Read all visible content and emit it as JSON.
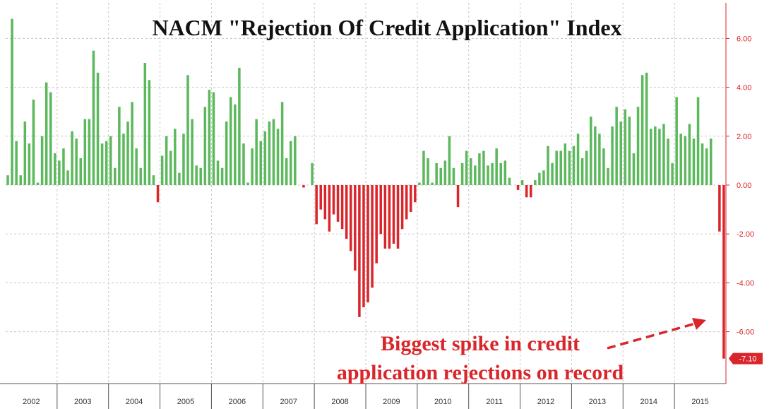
{
  "chart_data": {
    "type": "bar",
    "title": "NACM \"Rejection Of Credit Application\" Index",
    "xlabel": "",
    "ylabel": "",
    "ylim": [
      -7.6,
      7.6
    ],
    "y_ticks": [
      {
        "value": 6,
        "label": "6.00"
      },
      {
        "value": 4,
        "label": "4.00"
      },
      {
        "value": 2,
        "label": "2.00"
      },
      {
        "value": 0,
        "label": "0.00"
      },
      {
        "value": -2,
        "label": "-2.00"
      },
      {
        "value": -4,
        "label": "-4.00"
      },
      {
        "value": -6,
        "label": "-6.00"
      }
    ],
    "grid": true,
    "positive_color": "#5cb85c",
    "negative_color": "#d9262b",
    "years": [
      "2002",
      "2003",
      "2004",
      "2005",
      "2006",
      "2007",
      "2008",
      "2009",
      "2010",
      "2011",
      "2012",
      "2013",
      "2014",
      "2015"
    ],
    "monthly_values": [
      [
        0.4,
        6.8,
        1.8,
        0.4,
        2.6,
        1.7,
        3.5,
        0.1,
        2.0,
        4.2,
        3.8,
        1.3
      ],
      [
        1.0,
        1.5,
        0.6,
        2.2,
        1.9,
        1.1,
        2.7,
        2.7,
        5.5,
        4.6,
        1.7,
        1.8
      ],
      [
        2.0,
        0.7,
        3.2,
        2.1,
        2.6,
        3.4,
        1.5,
        0.7,
        5.0,
        4.3,
        0.4,
        -0.7
      ],
      [
        1.2,
        2.0,
        1.4,
        2.3,
        0.5,
        2.1,
        4.5,
        2.7,
        0.8,
        0.7,
        3.2,
        3.9
      ],
      [
        3.8,
        1.0,
        0.7,
        2.6,
        3.6,
        3.3,
        4.8,
        1.7,
        0.1,
        1.5,
        2.7,
        1.8
      ],
      [
        2.2,
        2.6,
        2.7,
        2.3,
        3.4,
        1.1,
        1.8,
        2.0,
        0.0,
        -0.1,
        0.0,
        0.9
      ],
      [
        -1.6,
        -1.0,
        -1.4,
        -1.9,
        -1.2,
        -1.5,
        -1.8,
        -2.2,
        -2.7,
        -3.5,
        -5.4,
        -5.0
      ],
      [
        -4.8,
        -4.2,
        -3.2,
        -2.0,
        -2.6,
        -2.6,
        -2.4,
        -2.6,
        -1.8,
        -1.4,
        -1.1,
        -0.7
      ],
      [
        0.1,
        1.4,
        1.1,
        0.1,
        0.9,
        0.7,
        1.0,
        2.0,
        0.7,
        -0.9,
        0.9,
        1.4
      ],
      [
        1.1,
        0.8,
        1.3,
        1.4,
        0.8,
        0.9,
        1.5,
        0.9,
        1.0,
        0.3,
        0.0,
        -0.2
      ],
      [
        0.2,
        -0.5,
        -0.5,
        0.2,
        0.5,
        0.6,
        1.6,
        0.9,
        1.4,
        1.4,
        1.7,
        1.4
      ],
      [
        1.6,
        2.1,
        1.1,
        1.4,
        2.8,
        2.4,
        2.1,
        1.5,
        0.7,
        2.4,
        3.2,
        2.6
      ],
      [
        3.1,
        2.8,
        1.3,
        3.2,
        4.5,
        4.6,
        2.3,
        2.4,
        2.3,
        2.5,
        1.9,
        0.9
      ],
      [
        3.6,
        2.1,
        2.0,
        2.5,
        1.9,
        3.6,
        1.7,
        1.5,
        1.9,
        0.0,
        -1.9,
        -7.1
      ]
    ],
    "last_value_label": "-7.10"
  },
  "annotation": {
    "line1": "Biggest spike in credit",
    "line2": "application rejections on record"
  }
}
